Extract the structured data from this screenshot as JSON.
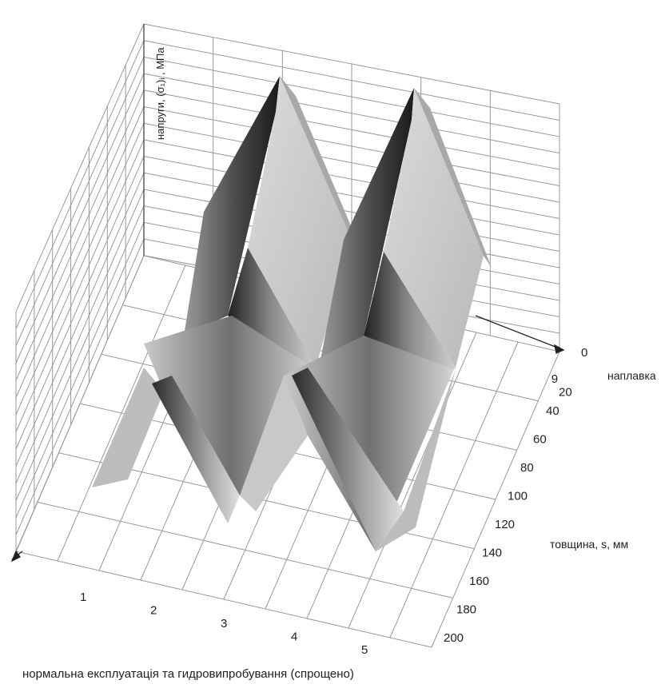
{
  "chart_data": {
    "type": "surface",
    "zlabel": "напруги, (σ₁)ᵢ , МПа",
    "ylabel": "товщина, s, мм",
    "caption": "нормальна експлуатація та гидровипробування (спрощено)",
    "annotation": "наплавка",
    "x_ticks": [
      "1",
      "2",
      "3",
      "4",
      "5"
    ],
    "y_ticks": [
      "0",
      "9",
      "20",
      "40",
      "60",
      "80",
      "100",
      "120",
      "140",
      "160",
      "180",
      "200"
    ],
    "y_tick_values": [
      0,
      9,
      20,
      40,
      60,
      80,
      100,
      120,
      140,
      160,
      180,
      200
    ],
    "ylim": [
      0,
      200
    ],
    "grid": true,
    "peaks": [
      {
        "x": 2.5,
        "s_ridge": 0
      },
      {
        "x": 4.5,
        "s_ridge": 0
      }
    ],
    "troughs": [
      {
        "x": 2.6,
        "s": 150
      },
      {
        "x": 4.6,
        "s": 170
      }
    ]
  }
}
